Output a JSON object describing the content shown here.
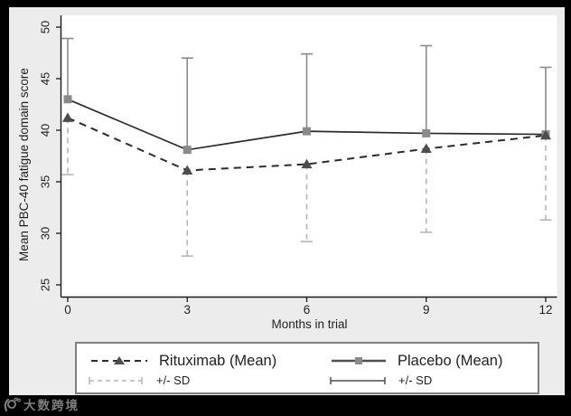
{
  "chart_data": {
    "type": "line",
    "title": "",
    "xlabel": "Months in trial",
    "ylabel": "Mean PBC-40 fatigue domain score",
    "x": [
      0,
      3,
      6,
      9,
      12
    ],
    "x_tick_labels": [
      "0",
      "3",
      "6",
      "9",
      "12"
    ],
    "y_ticks": [
      25,
      30,
      35,
      40,
      45,
      50
    ],
    "x_range": [
      0,
      12
    ],
    "y_range": [
      25,
      50
    ],
    "grid": false,
    "legend_position": "bottom",
    "series": [
      {
        "name": "Rituximab (Mean)",
        "values": [
          41.2,
          36.1,
          36.7,
          38.2,
          39.5
        ],
        "sd_cap_values": [
          35.7,
          27.8,
          29.2,
          30.1,
          31.3
        ],
        "sd_direction": "down",
        "line_style": "dashed",
        "marker": "triangle",
        "line_color": "#2b2b2b",
        "marker_color": "#4d4d4d",
        "sd_color": "#b5b5b5",
        "sd_style": "dashed"
      },
      {
        "name": "Placebo (Mean)",
        "values": [
          43.0,
          38.1,
          39.9,
          39.7,
          39.6
        ],
        "sd_cap_values": [
          48.9,
          47.0,
          47.4,
          48.2,
          46.1
        ],
        "sd_direction": "up",
        "line_style": "solid",
        "marker": "square",
        "line_color": "#2b2b2b",
        "marker_color": "#8a8a8a",
        "sd_color": "#8a8a8a",
        "sd_style": "solid"
      }
    ],
    "legend": {
      "mean_entries": [
        {
          "label": "Rituximab (Mean)"
        },
        {
          "label": "Placebo (Mean)"
        }
      ],
      "sd_entries": [
        {
          "label": "+/- SD"
        },
        {
          "label": "+/- SD"
        }
      ]
    }
  },
  "watermark": {
    "text": "大数跨境"
  },
  "colors": {
    "frame": "#000000",
    "canvas_bg": "#ececec",
    "plot_bg": "#ffffff",
    "axis": "#1a1a1a",
    "text": "#1f1f1f",
    "legend_border": "#7f7f7f"
  }
}
